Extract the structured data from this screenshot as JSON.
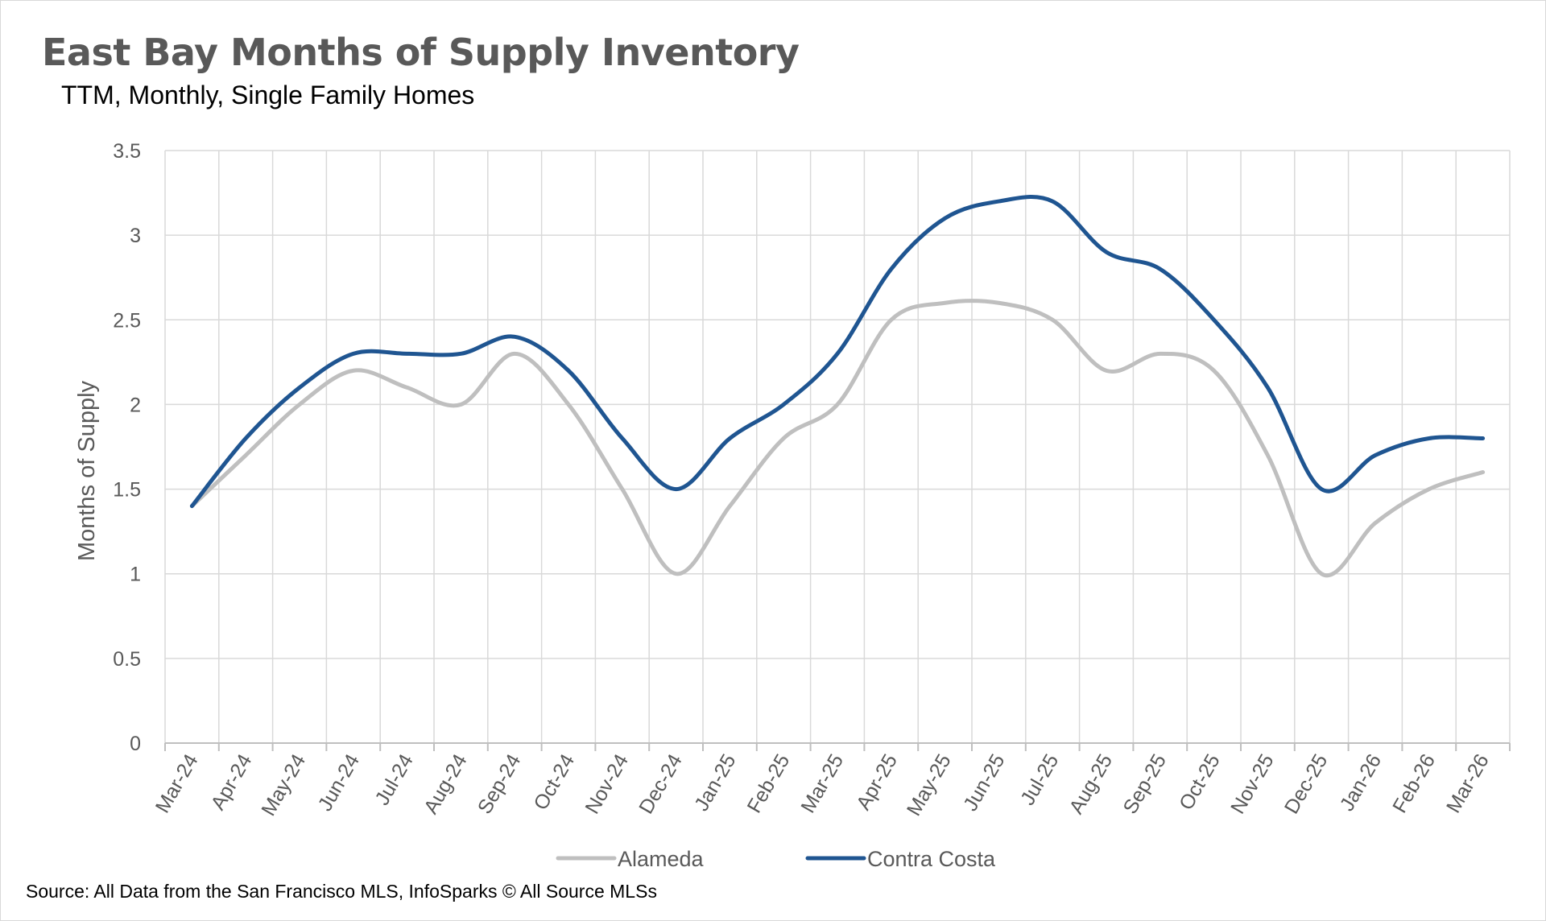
{
  "chart_data": {
    "type": "line",
    "title": "East Bay Months of Supply Inventory",
    "subtitle": "TTM, Monthly, Single Family Homes",
    "ylabel": "Months of Supply",
    "ylim": [
      0,
      3.5
    ],
    "yticks": [
      "0",
      "0.5",
      "1",
      "1.5",
      "2",
      "2.5",
      "3",
      "3.5"
    ],
    "categories": [
      "Mar-24",
      "Apr-24",
      "May-24",
      "Jun-24",
      "Jul-24",
      "Aug-24",
      "Sep-24",
      "Oct-24",
      "Nov-24",
      "Dec-24",
      "Jan-25",
      "Feb-25",
      "Mar-25",
      "Apr-25",
      "May-25",
      "Jun-25",
      "Jul-25",
      "Aug-25",
      "Sep-25",
      "Oct-25",
      "Nov-25",
      "Dec-25",
      "Jan-26",
      "Feb-26",
      "Mar-26"
    ],
    "series": [
      {
        "name": "Alameda",
        "color": "#bfbfbf",
        "values": [
          1.4,
          1.7,
          2.0,
          2.2,
          2.1,
          2.0,
          2.3,
          2.0,
          1.5,
          1.0,
          1.4,
          1.8,
          2.0,
          2.5,
          2.6,
          2.6,
          2.5,
          2.2,
          2.3,
          2.2,
          1.7,
          1.0,
          1.3,
          1.5,
          1.6
        ]
      },
      {
        "name": "Contra Costa",
        "color": "#1f5591",
        "values": [
          1.4,
          1.8,
          2.1,
          2.3,
          2.3,
          2.3,
          2.4,
          2.2,
          1.8,
          1.5,
          1.8,
          2.0,
          2.3,
          2.8,
          3.1,
          3.2,
          3.2,
          2.9,
          2.8,
          2.5,
          2.1,
          1.5,
          1.7,
          1.8,
          1.8
        ]
      }
    ],
    "grid": true,
    "legend": "bottom"
  },
  "source": "Source: All Data from the San Francisco MLS, InfoSparks © All Source MLSs"
}
